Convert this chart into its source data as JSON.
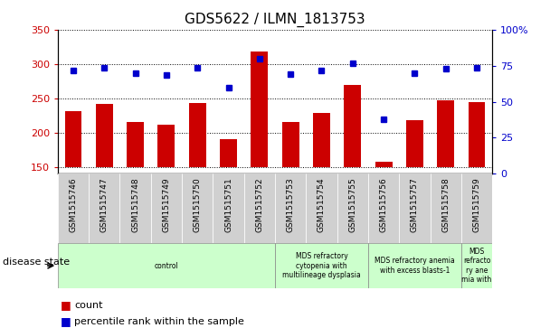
{
  "title": "GDS5622 / ILMN_1813753",
  "samples": [
    "GSM1515746",
    "GSM1515747",
    "GSM1515748",
    "GSM1515749",
    "GSM1515750",
    "GSM1515751",
    "GSM1515752",
    "GSM1515753",
    "GSM1515754",
    "GSM1515755",
    "GSM1515756",
    "GSM1515757",
    "GSM1515758",
    "GSM1515759"
  ],
  "counts": [
    231,
    242,
    215,
    212,
    243,
    190,
    318,
    215,
    229,
    269,
    158,
    218,
    247,
    244
  ],
  "percentile_ranks_left_scale": [
    291,
    295,
    286,
    284,
    294,
    265,
    308,
    285,
    291,
    301,
    219,
    286,
    293,
    294
  ],
  "ylim_left": [
    140,
    350
  ],
  "ylim_right": [
    0,
    100
  ],
  "yticks_left": [
    150,
    200,
    250,
    300,
    350
  ],
  "yticks_right": [
    0,
    25,
    50,
    75,
    100
  ],
  "bar_color": "#cc0000",
  "dot_color": "#0000cc",
  "grid_color": "black",
  "disease_groups": [
    {
      "label": "control",
      "start": 0,
      "end": 7,
      "color": "#ccffcc"
    },
    {
      "label": "MDS refractory\ncytopenia with\nmultilineage dysplasia",
      "start": 7,
      "end": 10,
      "color": "#ccffcc"
    },
    {
      "label": "MDS refractory anemia\nwith excess blasts-1",
      "start": 10,
      "end": 13,
      "color": "#ccffcc"
    },
    {
      "label": "MDS\nrefracto\nry ane\nmia with",
      "start": 13,
      "end": 14,
      "color": "#ccffcc"
    }
  ],
  "disease_state_label": "disease state",
  "legend_count_label": "count",
  "legend_pct_label": "percentile rank within the sample",
  "xtick_bg_color": "#d0d0d0",
  "bar_bottom": 150
}
